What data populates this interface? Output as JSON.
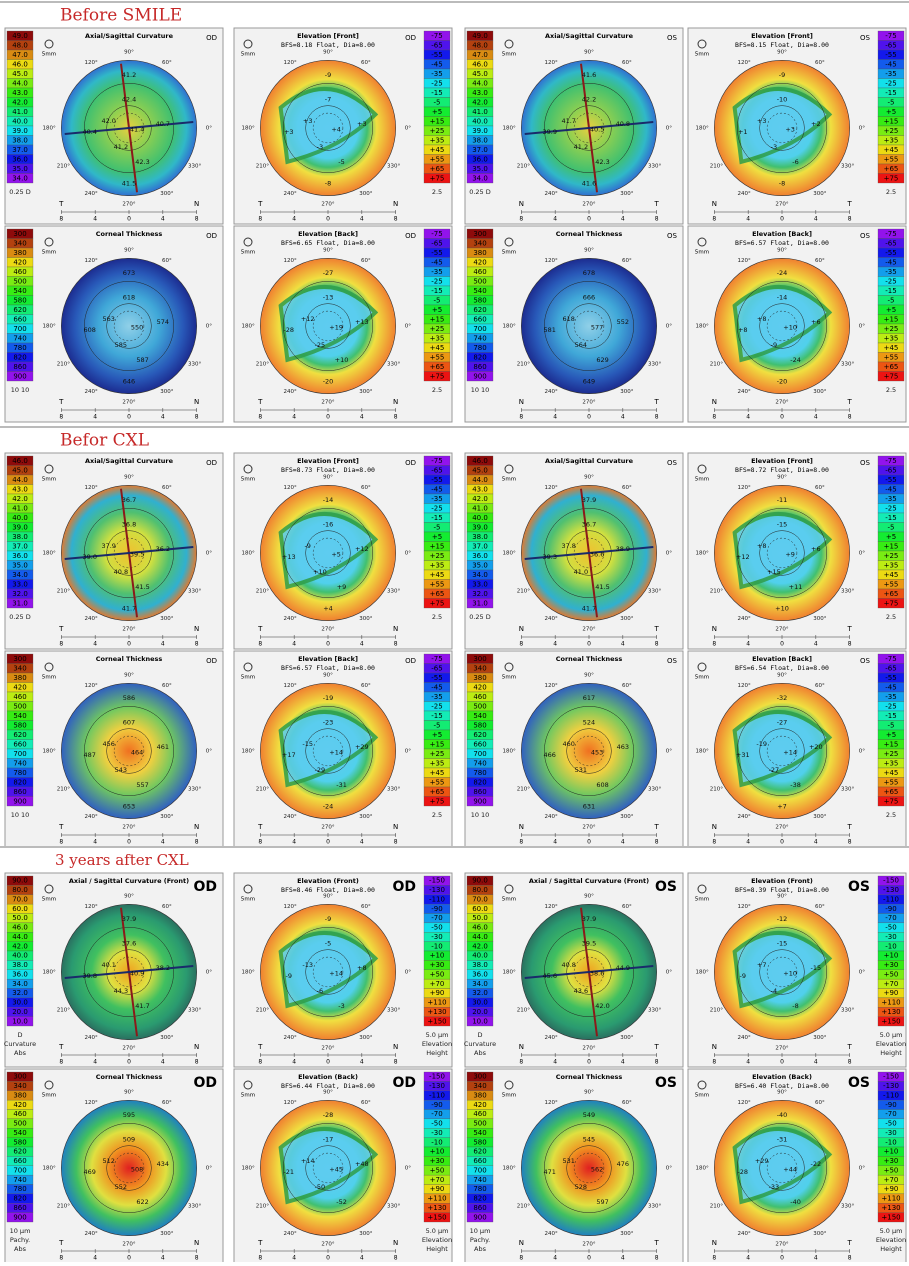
{
  "map_axes": {
    "angles": [
      "90°",
      "120°",
      "60°",
      "180°",
      "0°",
      "210°",
      "330°",
      "240°",
      "270°",
      "300°"
    ],
    "ruler": [
      "8",
      "4",
      "0",
      "4",
      "8"
    ],
    "zoom": "5mm"
  },
  "sections": [
    {
      "title": "Before SMILE",
      "scales": {
        "curvature": [
          "49.0",
          "48.0",
          "47.0",
          "46.0",
          "45.0",
          "44.0",
          "43.0",
          "42.0",
          "41.0",
          "40.0",
          "39.0",
          "38.0",
          "37.0",
          "36.0",
          "35.0",
          "34.0"
        ],
        "elevation": [
          "-75",
          "-65",
          "-55",
          "-45",
          "-35",
          "-25",
          "-15",
          "-5",
          "+5",
          "+15",
          "+25",
          "+35",
          "+45",
          "+55",
          "+65",
          "+75"
        ],
        "thickness": [
          "300",
          "340",
          "380",
          "420",
          "460",
          "500",
          "540",
          "580",
          "620",
          "660",
          "700",
          "740",
          "780",
          "820",
          "860",
          "900"
        ]
      },
      "scale_notes": {
        "curvature": [
          "0.25 D"
        ],
        "elevation": [
          "2.5"
        ],
        "thickness": [
          "10 10"
        ]
      },
      "groups": [
        {
          "eye": "OD",
          "sides": [
            "T",
            "N"
          ],
          "panels": [
            {
              "kind": "curvature",
              "title": "Axial/Sagittal Curvature",
              "values": [
                "41.2",
                "42.4",
                "42.0",
                "41.4",
                "40.7",
                "40.4",
                "41.2",
                "42.3",
                "41.5"
              ]
            },
            {
              "kind": "elevation",
              "title": "Elevation [Front]",
              "subtitle": "BFS=8.18 Float, Dia=8.00",
              "values": [
                "-9",
                "-7",
                "+3",
                "+4",
                "+3",
                "+3",
                "-3",
                "-5",
                "-8"
              ]
            },
            {
              "kind": "thickness",
              "title": "Corneal Thickness",
              "values": [
                "673",
                "618",
                "563",
                "550",
                "574",
                "608",
                "585",
                "587",
                "646"
              ]
            },
            {
              "kind": "elevation",
              "title": "Elevation [Back]",
              "subtitle": "BFS=6.65 Float, Dia=8.00",
              "values": [
                "-27",
                "-13",
                "+12",
                "+19",
                "+13",
                "-28",
                "-25",
                "+10",
                "-20"
              ]
            }
          ]
        },
        {
          "eye": "OS",
          "sides": [
            "N",
            "T"
          ],
          "panels": [
            {
              "kind": "curvature",
              "title": "Axial/Sagittal Curvature",
              "values": [
                "41.6",
                "42.2",
                "41.7",
                "40.5",
                "40.8",
                "39.9",
                "41.2",
                "42.3",
                "41.6"
              ]
            },
            {
              "kind": "elevation",
              "title": "Elevation [Front]",
              "subtitle": "BFS=8.15 Float, Dia=8.00",
              "values": [
                "-9",
                "-10",
                "+3",
                "+3",
                "+2",
                "+1",
                "-3",
                "-6",
                "-8"
              ]
            },
            {
              "kind": "thickness",
              "title": "Corneal Thickness",
              "values": [
                "678",
                "666",
                "618",
                "577",
                "552",
                "581",
                "564",
                "629",
                "649"
              ]
            },
            {
              "kind": "elevation",
              "title": "Elevation [Back]",
              "subtitle": "BFS=6.57 Float, Dia=8.00",
              "values": [
                "-24",
                "-14",
                "+8",
                "+10",
                "+6",
                "+8",
                "-9",
                "-24",
                "-20"
              ]
            }
          ]
        }
      ]
    },
    {
      "title": "Befor CXL",
      "scales": {
        "curvature": [
          "46.0",
          "45.0",
          "44.0",
          "43.0",
          "42.0",
          "41.0",
          "40.0",
          "39.0",
          "38.0",
          "37.0",
          "36.0",
          "35.0",
          "34.0",
          "33.0",
          "32.0",
          "31.0"
        ],
        "elevation": [
          "-75",
          "-65",
          "-55",
          "-45",
          "-35",
          "-25",
          "-15",
          "-5",
          "+5",
          "+15",
          "+25",
          "+35",
          "+45",
          "+55",
          "+65",
          "+75"
        ],
        "thickness": [
          "300",
          "340",
          "380",
          "420",
          "460",
          "500",
          "540",
          "580",
          "620",
          "660",
          "700",
          "740",
          "780",
          "820",
          "860",
          "900"
        ]
      },
      "scale_notes": {
        "curvature": [
          "0.25 D"
        ],
        "elevation": [
          "2.5"
        ],
        "thickness": [
          "10 10"
        ]
      },
      "groups": [
        {
          "eye": "OD",
          "sides": [
            "T",
            "N"
          ],
          "panels": [
            {
              "kind": "curvature",
              "title": "Axial/Sagittal Curvature",
              "values": [
                "36.7",
                "36.8",
                "37.9",
                "39.5",
                "36.2",
                "39.0",
                "40.8",
                "41.5",
                "41.7"
              ]
            },
            {
              "kind": "elevation",
              "title": "Elevation [Front]",
              "subtitle": "BFS=8.73 Float, Dia=8.00",
              "values": [
                "-14",
                "-16",
                "-9",
                "+5",
                "+12",
                "+13",
                "+10",
                "+9",
                "+4"
              ]
            },
            {
              "kind": "thickness",
              "title": "Corneal Thickness",
              "values": [
                "586",
                "607",
                "456",
                "464",
                "461",
                "487",
                "543",
                "557",
                "653"
              ]
            },
            {
              "kind": "elevation",
              "title": "Elevation [Back]",
              "subtitle": "BFS=6.57 Float, Dia=8.00",
              "values": [
                "-19",
                "-23",
                "-15",
                "+14",
                "+29",
                "+17",
                "-29",
                "-31",
                "-24"
              ]
            }
          ]
        },
        {
          "eye": "OS",
          "sides": [
            "N",
            "T"
          ],
          "panels": [
            {
              "kind": "curvature",
              "title": "Axial/Sagittal Curvature",
              "values": [
                "37.9",
                "36.7",
                "37.8",
                "36.6",
                "38.9",
                "39.3",
                "41.0",
                "41.5",
                "41.7"
              ]
            },
            {
              "kind": "elevation",
              "title": "Elevation [Front]",
              "subtitle": "BFS=8.72 Float, Dia=8.00",
              "values": [
                "-11",
                "-15",
                "+8",
                "+9",
                "+6",
                "+12",
                "+15",
                "+11",
                "+10"
              ]
            },
            {
              "kind": "thickness",
              "title": "Corneal Thickness",
              "values": [
                "617",
                "524",
                "460",
                "453",
                "463",
                "466",
                "531",
                "608",
                "631"
              ]
            },
            {
              "kind": "elevation",
              "title": "Elevation [Back]",
              "subtitle": "BFS=6.54 Float, Dia=8.00",
              "values": [
                "-32",
                "-27",
                "-19",
                "+14",
                "+20",
                "+31",
                "-27",
                "-38",
                "+7"
              ]
            }
          ]
        }
      ]
    },
    {
      "title": "3 years after CXL",
      "scales": {
        "curvature": [
          "90.0",
          "80.0",
          "70.0",
          "60.0",
          "50.0",
          "46.0",
          "44.0",
          "42.0",
          "40.0",
          "38.0",
          "36.0",
          "34.0",
          "32.0",
          "30.0",
          "20.0",
          "10.0"
        ],
        "elevation": [
          "-150",
          "-130",
          "-110",
          "-90",
          "-70",
          "-50",
          "-30",
          "-10",
          "+10",
          "+30",
          "+50",
          "+70",
          "+90",
          "+110",
          "+130",
          "+150"
        ],
        "thickness": [
          "300",
          "340",
          "380",
          "420",
          "460",
          "500",
          "540",
          "580",
          "620",
          "660",
          "700",
          "740",
          "780",
          "820",
          "860",
          "900"
        ]
      },
      "scale_notes": {
        "curvature": [
          "D",
          "Curvature",
          "Abs"
        ],
        "elevation": [
          "5.0 µm",
          "Elevation",
          "Height"
        ],
        "thickness": [
          "10 µm",
          "Pachy.",
          "Abs"
        ]
      },
      "groups": [
        {
          "eye": "OD",
          "sides": [
            "T",
            "N"
          ],
          "panels": [
            {
              "kind": "curvature",
              "title": "Axial / Sagittal Curvature (Front)",
              "values": [
                "37.9",
                "37.6",
                "40.1",
                "40.9",
                "38.2",
                "39.8",
                "44.3",
                "41.7"
              ]
            },
            {
              "kind": "elevation",
              "title": "Elevation (Front)",
              "subtitle": "BFS=8.46 Float, Dia=8.00",
              "values": [
                "-9",
                "-5",
                "-13",
                "+14",
                "+8",
                "-9",
                "-6",
                "-3"
              ]
            },
            {
              "kind": "thickness",
              "title": "Corneal Thickness",
              "values": [
                "595",
                "509",
                "512",
                "508",
                "434",
                "469",
                "552",
                "622"
              ]
            },
            {
              "kind": "elevation",
              "title": "Elevation (Back)",
              "subtitle": "BFS=6.44 Float, Dia=8.00",
              "values": [
                "-28",
                "-17",
                "+14",
                "+45",
                "+48",
                "-21",
                "-50",
                "-52"
              ]
            }
          ]
        },
        {
          "eye": "OS",
          "sides": [
            "N",
            "T"
          ],
          "panels": [
            {
              "kind": "curvature",
              "title": "Axial / Sagittal Curvature (Front)",
              "values": [
                "37.9",
                "39.5",
                "40.8",
                "38.6",
                "44.9",
                "45.6",
                "43.6",
                "42.0"
              ]
            },
            {
              "kind": "elevation",
              "title": "Elevation (Front)",
              "subtitle": "BFS=8.39 Float, Dia=8.00",
              "values": [
                "-12",
                "-15",
                "+7",
                "+10",
                "-15",
                "-9",
                "-4",
                "-8"
              ]
            },
            {
              "kind": "thickness",
              "title": "Corneal Thickness",
              "values": [
                "549",
                "545",
                "531",
                "562",
                "476",
                "471",
                "528",
                "597"
              ]
            },
            {
              "kind": "elevation",
              "title": "Elevation (Back)",
              "subtitle": "BFS=6.40 Float, Dia=8.00",
              "values": [
                "-40",
                "-31",
                "+29",
                "+44",
                "-22",
                "-28",
                "-33",
                "-40"
              ]
            }
          ]
        }
      ]
    }
  ]
}
